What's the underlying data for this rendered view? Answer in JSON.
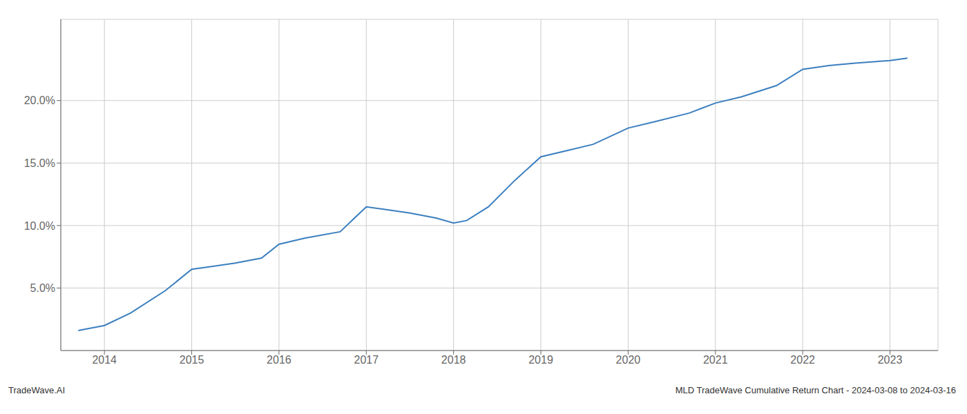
{
  "chart_data": {
    "type": "line",
    "x": [
      2013.7,
      2014.0,
      2014.3,
      2014.7,
      2015.0,
      2015.2,
      2015.5,
      2015.8,
      2016.0,
      2016.3,
      2016.7,
      2017.0,
      2017.2,
      2017.5,
      2017.8,
      2018.0,
      2018.15,
      2018.4,
      2018.7,
      2019.0,
      2019.3,
      2019.6,
      2020.0,
      2020.3,
      2020.7,
      2021.0,
      2021.3,
      2021.7,
      2022.0,
      2022.3,
      2022.6,
      2023.0,
      2023.2
    ],
    "values": [
      0.016,
      0.02,
      0.03,
      0.048,
      0.065,
      0.067,
      0.07,
      0.074,
      0.085,
      0.09,
      0.095,
      0.115,
      0.113,
      0.11,
      0.106,
      0.102,
      0.104,
      0.115,
      0.136,
      0.155,
      0.16,
      0.165,
      0.178,
      0.183,
      0.19,
      0.198,
      0.203,
      0.212,
      0.225,
      0.228,
      0.23,
      0.232,
      0.234
    ],
    "color": "#3a7ebf",
    "xlim": [
      2013.5,
      2023.55
    ],
    "xticks": [
      2014,
      2015,
      2016,
      2017,
      2018,
      2019,
      2020,
      2021,
      2022,
      2023
    ],
    "ylim": [
      0.0,
      0.265
    ],
    "yticks": [
      {
        "value": 0.05,
        "label": "5.0%"
      },
      {
        "value": 0.1,
        "label": "10.0%"
      },
      {
        "value": 0.15,
        "label": "15.0%"
      },
      {
        "value": 0.2,
        "label": "20.0%"
      }
    ],
    "grid": true,
    "annotations": [
      "TradeWave.AI",
      "MLD TradeWave Cumulative Return Chart - 2024-03-08 to 2024-03-16"
    ]
  }
}
